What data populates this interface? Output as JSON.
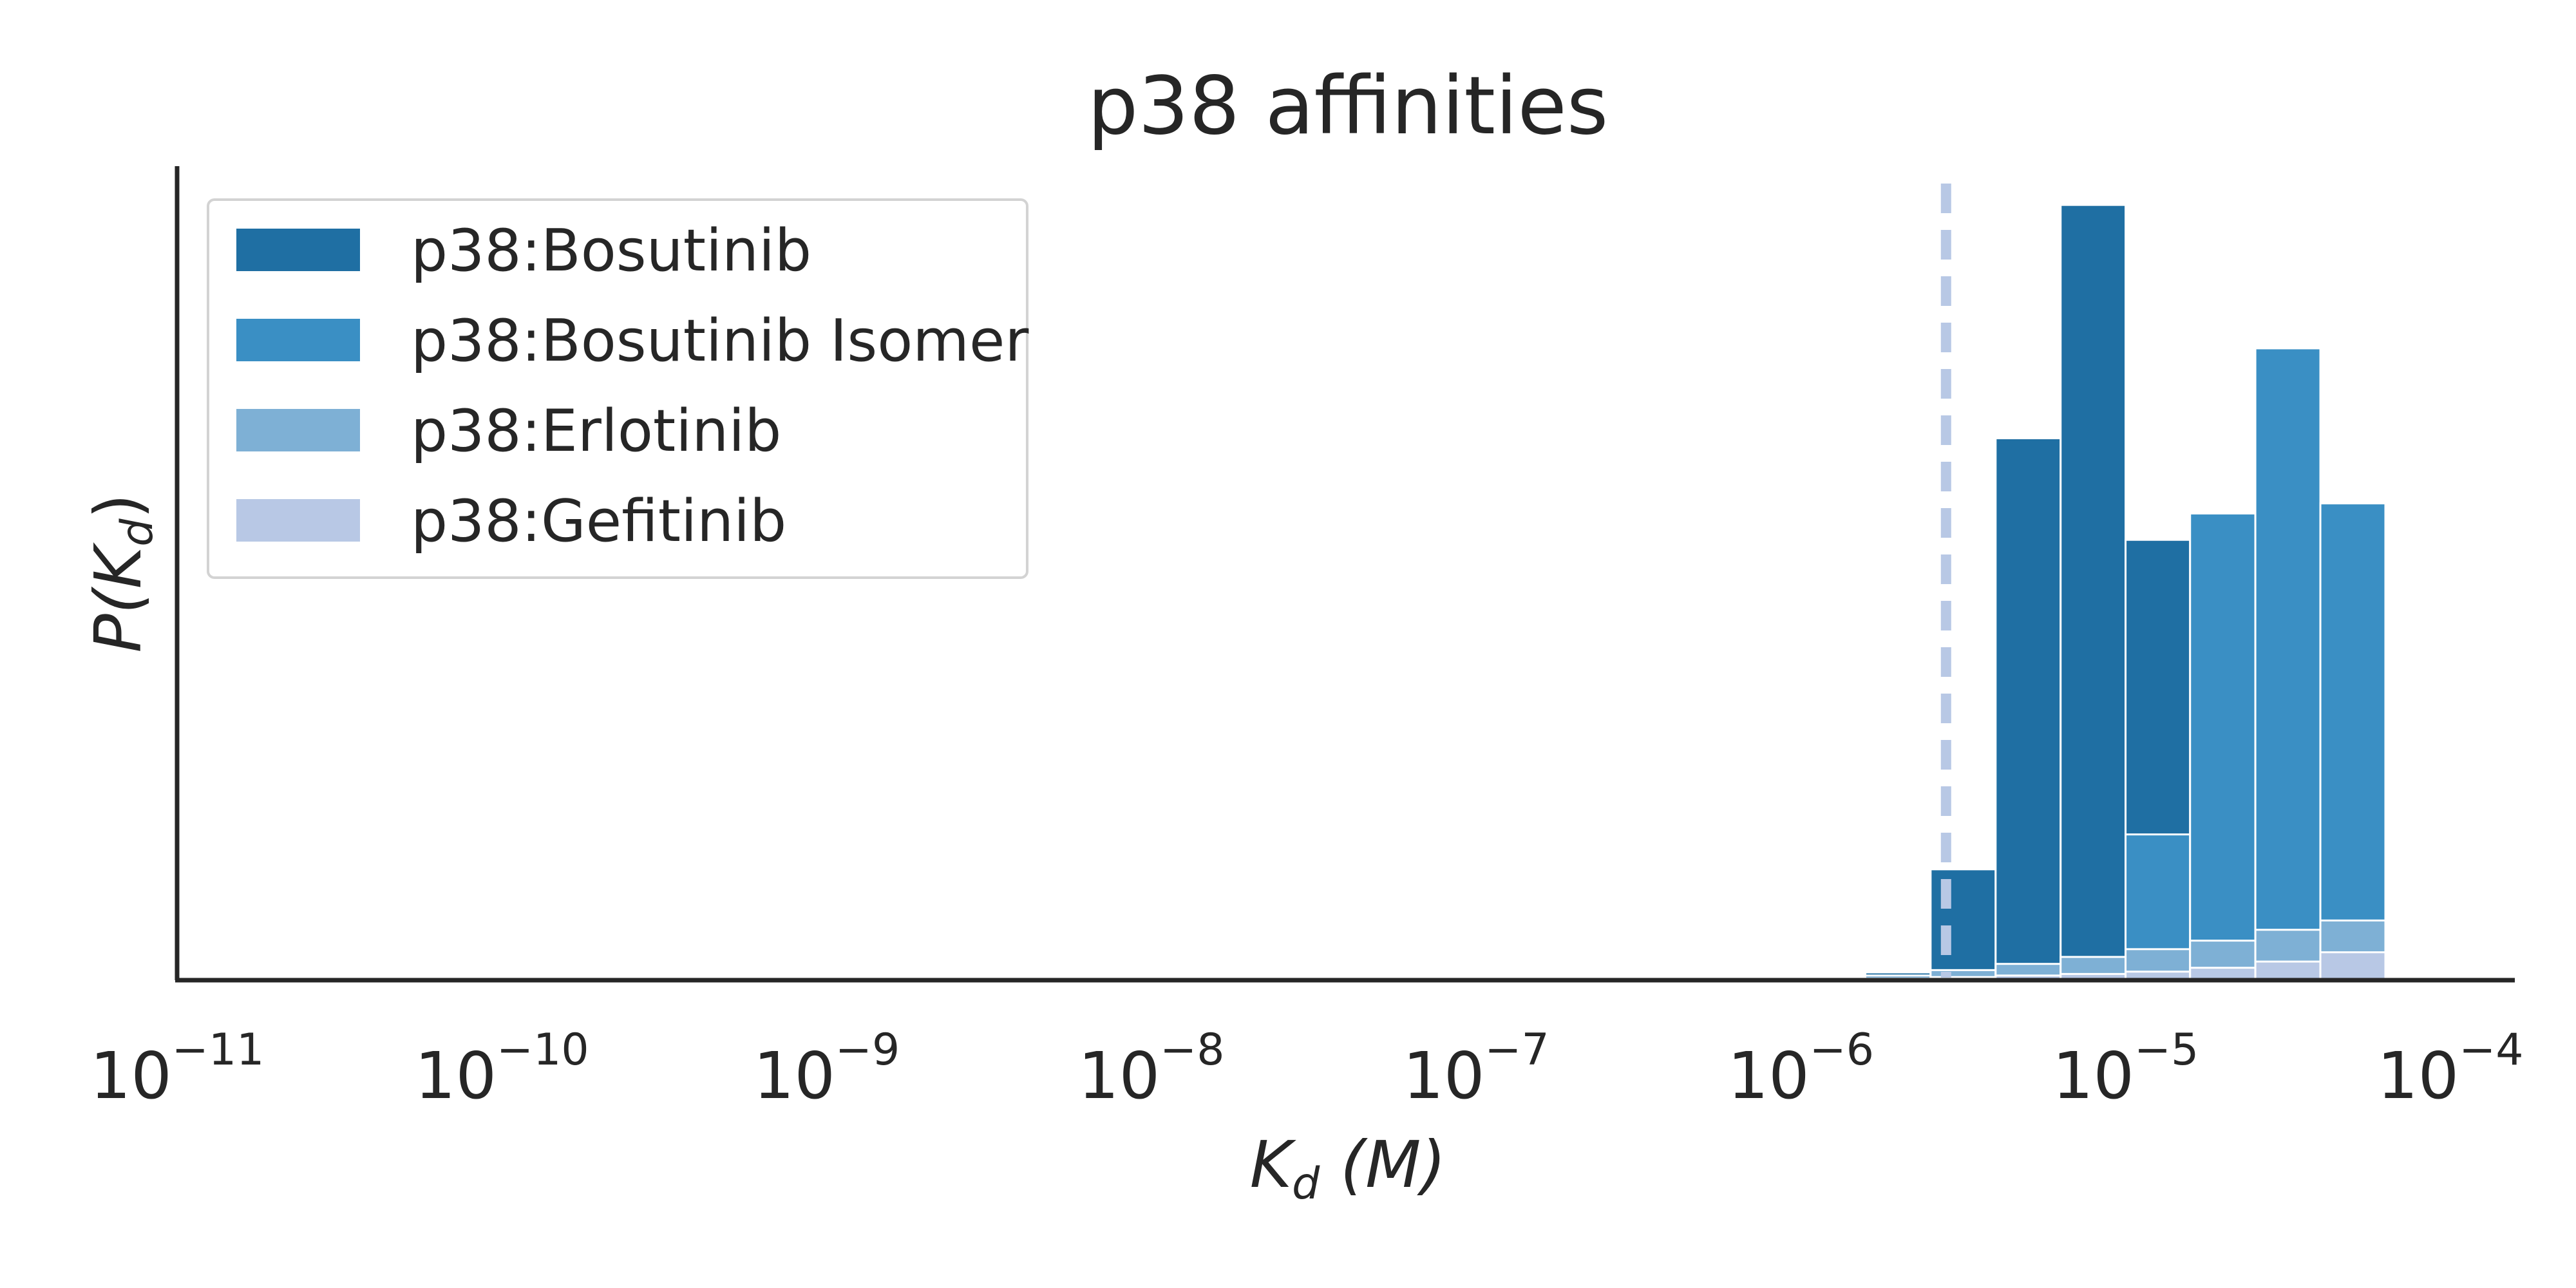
{
  "chart_data": {
    "type": "bar",
    "title": "p38 affinities",
    "xlabel": {
      "main": "K",
      "sub": "d",
      "unit": " (M)"
    },
    "ylabel": {
      "main": "P(K",
      "sub": "d",
      "close": ")"
    },
    "x_scale": "log",
    "xlim": [
      1e-11,
      0.000158
    ],
    "ylim": [
      0,
      1.05
    ],
    "x_ticks": [
      {
        "value": 1e-11,
        "base": "10",
        "exp": "−11"
      },
      {
        "value": 1e-10,
        "base": "10",
        "exp": "−10"
      },
      {
        "value": 1e-09,
        "base": "10",
        "exp": "−9"
      },
      {
        "value": 1e-08,
        "base": "10",
        "exp": "−8"
      },
      {
        "value": 1e-07,
        "base": "10",
        "exp": "−7"
      },
      {
        "value": 1e-06,
        "base": "10",
        "exp": "−6"
      },
      {
        "value": 1e-05,
        "base": "10",
        "exp": "−5"
      },
      {
        "value": 0.0001,
        "base": "10",
        "exp": "−4"
      }
    ],
    "y_ticks_shown": false,
    "grid": false,
    "legend_position": "top-left",
    "bin_edges": [
      1.58e-06,
      2.51e-06,
      3.98e-06,
      6.31e-06,
      1e-05,
      1.58e-05,
      2.51e-05,
      3.98e-05,
      6.31e-05
    ],
    "series": [
      {
        "name": "p38:Bosutinib",
        "color": "#1f6fa3",
        "values": [
          0.01,
          0.143,
          0.699,
          1.0,
          0.568,
          0,
          0,
          0
        ]
      },
      {
        "name": "p38:Bosutinib Isomer",
        "color": "#3a8fc4",
        "values": [
          0,
          0,
          0,
          0,
          0.188,
          0.602,
          0.815,
          0.615
        ]
      },
      {
        "name": "p38:Erlotinib",
        "color": "#7eb0d5",
        "values": [
          0.006,
          0.013,
          0.021,
          0.03,
          0.04,
          0.051,
          0.065,
          0.077
        ]
      },
      {
        "name": "p38:Gefitinib",
        "color": "#b8c8e5",
        "values": [
          0.002,
          0.004,
          0.006,
          0.008,
          0.011,
          0.016,
          0.024,
          0.036
        ]
      }
    ],
    "reference_line": {
      "x": 2.8e-06,
      "color": "#b8c8e5",
      "style": "dashed"
    }
  }
}
